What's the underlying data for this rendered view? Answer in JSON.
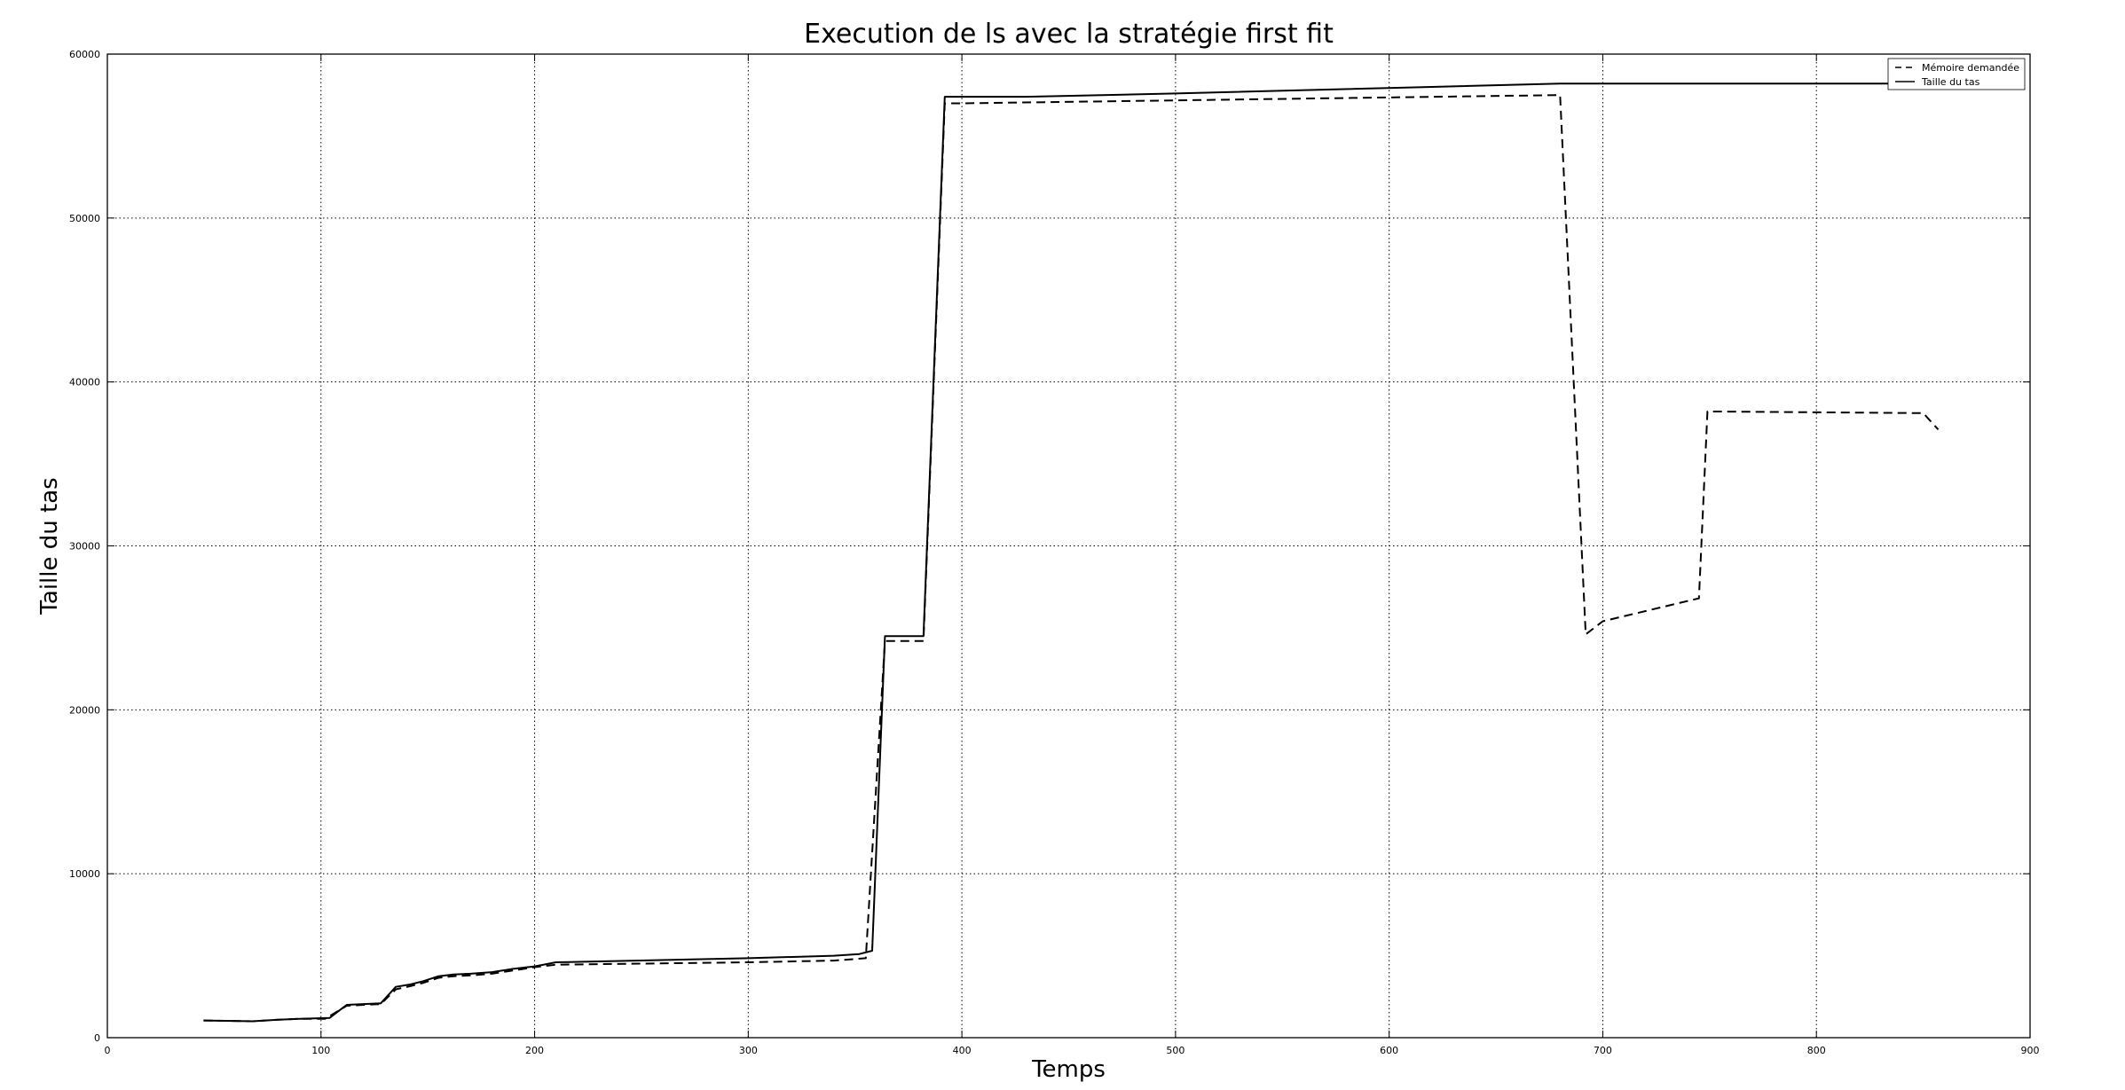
{
  "chart_data": {
    "type": "line",
    "title": "Execution de ls avec la stratégie first fit",
    "xlabel": "Temps",
    "ylabel": "Taille du tas",
    "xlim": [
      0,
      900
    ],
    "ylim": [
      0,
      60000
    ],
    "xticks": [
      "0",
      "100",
      "200",
      "300",
      "400",
      "500",
      "600",
      "700",
      "800",
      "900"
    ],
    "yticks": [
      "0",
      "10000",
      "20000",
      "30000",
      "40000",
      "50000",
      "60000"
    ],
    "grid": true,
    "legend_position": "top-right",
    "series": [
      {
        "name": "Mémoire demandée",
        "style": "dashed",
        "color": "#000000",
        "x": [
          45,
          55,
          68,
          80,
          90,
          102,
          112,
          120,
          128,
          135,
          142,
          148,
          155,
          162,
          170,
          180,
          190,
          200,
          210,
          300,
          340,
          355,
          364,
          382,
          392,
          400,
          680,
          692,
          700,
          745,
          749,
          850,
          857
        ],
        "y": [
          1050,
          1030,
          1000,
          1100,
          1150,
          1150,
          1950,
          2000,
          2050,
          2950,
          3150,
          3350,
          3650,
          3750,
          3800,
          3900,
          4100,
          4300,
          4450,
          4600,
          4700,
          4850,
          24200,
          24200,
          57000,
          57000,
          57500,
          24600,
          25400,
          26800,
          38200,
          38100,
          37100
        ]
      },
      {
        "name": "Taille du tas",
        "style": "solid",
        "color": "#000000",
        "x": [
          45,
          55,
          68,
          80,
          90,
          104,
          112,
          120,
          128,
          135,
          142,
          148,
          155,
          162,
          170,
          180,
          190,
          200,
          210,
          300,
          340,
          352,
          358,
          364,
          382,
          392,
          430,
          500,
          620,
          680,
          860
        ],
        "y": [
          1050,
          1030,
          1000,
          1100,
          1150,
          1200,
          2000,
          2050,
          2100,
          3100,
          3250,
          3450,
          3750,
          3850,
          3900,
          4000,
          4200,
          4350,
          4600,
          4850,
          5000,
          5100,
          5300,
          24500,
          24500,
          57400,
          57400,
          57600,
          58000,
          58200,
          58200
        ]
      }
    ]
  }
}
